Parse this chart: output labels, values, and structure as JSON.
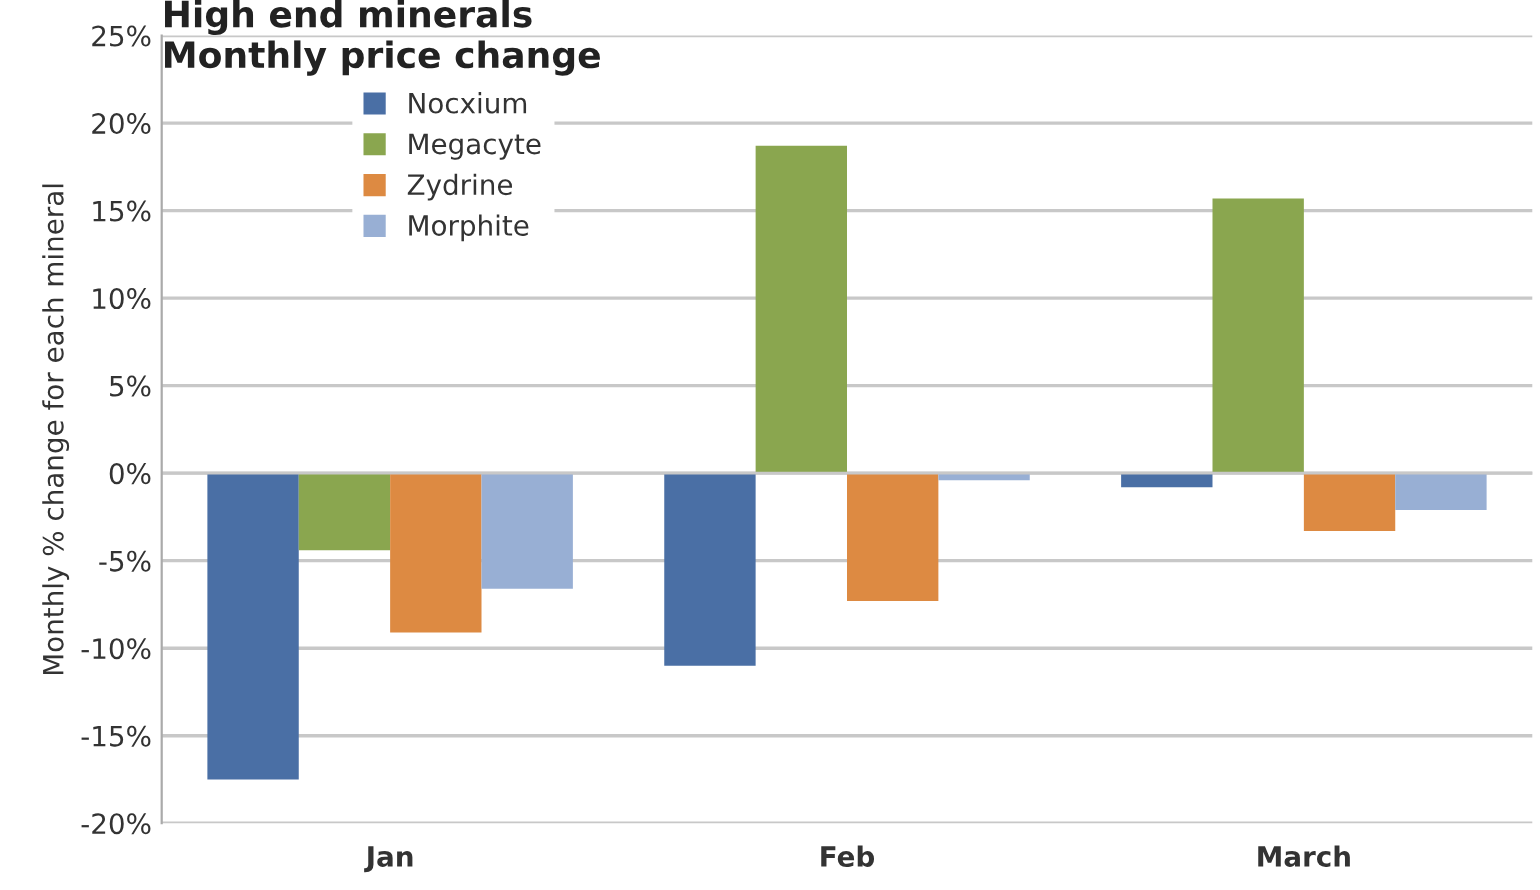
{
  "chart_data": {
    "type": "bar",
    "title": "High end minerals\nMonthly price change",
    "ylabel": "Monthly % change for each mineral",
    "categories": [
      "Jan",
      "Feb",
      "March"
    ],
    "series": [
      {
        "name": "Nocxium",
        "color": "#4a6fa5",
        "values": [
          -17.5,
          -11.0,
          -0.8
        ]
      },
      {
        "name": "Megacyte",
        "color": "#8aa64f",
        "values": [
          -4.4,
          18.7,
          15.7
        ]
      },
      {
        "name": "Zydrine",
        "color": "#dd8a42",
        "values": [
          -9.1,
          -7.3,
          -3.3
        ]
      },
      {
        "name": "Morphite",
        "color": "#98afd4",
        "values": [
          -6.6,
          -0.4,
          -2.1
        ]
      }
    ],
    "ylim": [
      -20,
      25
    ],
    "yticks": [
      {
        "value": -20,
        "label": "-20%"
      },
      {
        "value": -15,
        "label": "-15%"
      },
      {
        "value": -10,
        "label": "-10%"
      },
      {
        "value": -5,
        "label": "-5%"
      },
      {
        "value": 0,
        "label": "0%"
      },
      {
        "value": 5,
        "label": "5%"
      },
      {
        "value": 10,
        "label": "10%"
      },
      {
        "value": 15,
        "label": "15%"
      },
      {
        "value": 20,
        "label": "20%"
      },
      {
        "value": 25,
        "label": "25%"
      }
    ],
    "grid": "y",
    "legend": "top left"
  }
}
